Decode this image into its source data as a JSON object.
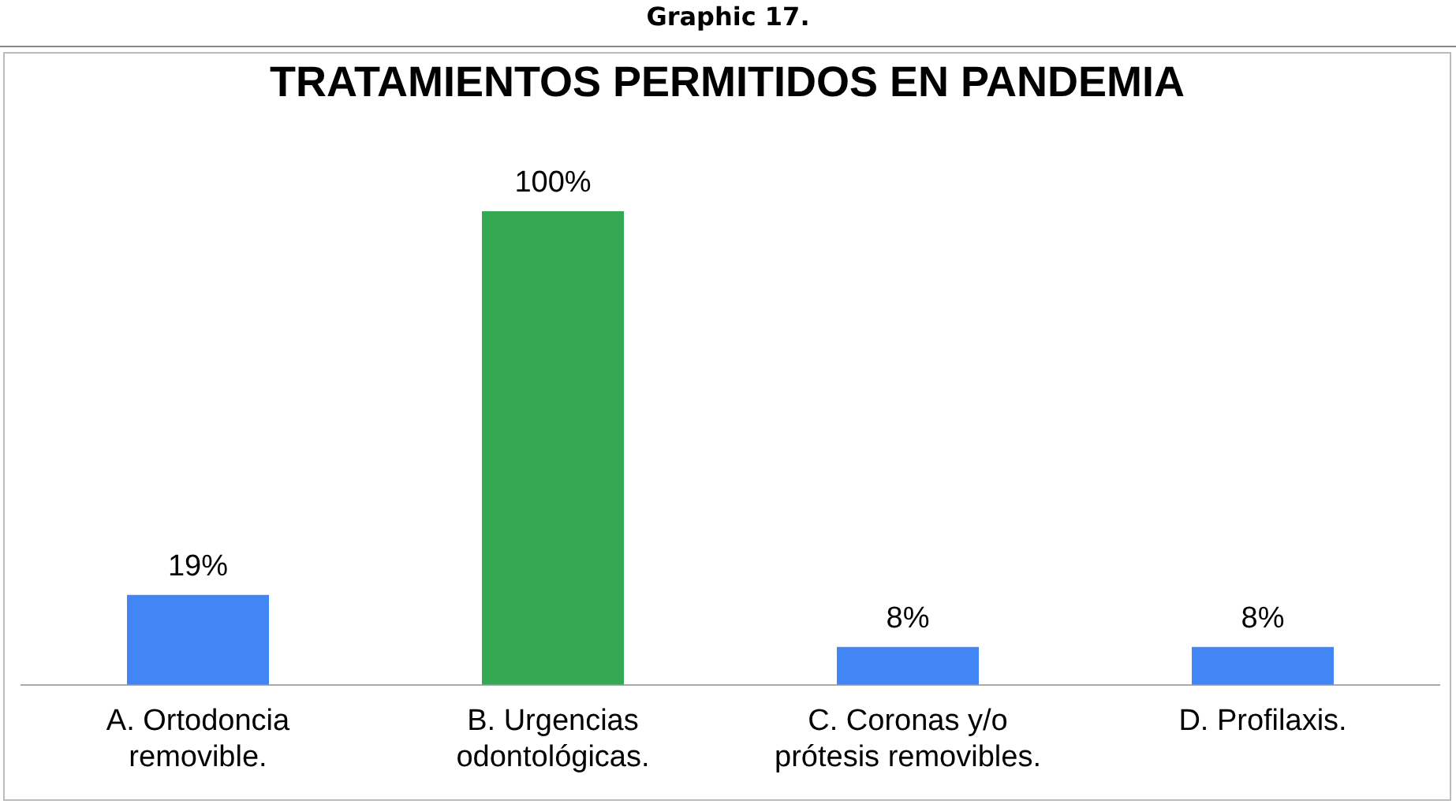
{
  "chart_data": {
    "type": "bar",
    "title": "TRATAMIENTOS  PERMITIDOS EN PANDEMIA",
    "annotations": [
      "Graphic 17."
    ],
    "categories": [
      "A. Ortodoncia removible.",
      "B. Urgencias odontológicas.",
      "C. Coronas y/o prótesis removibles.",
      "D. Profilaxis."
    ],
    "values": [
      19,
      100,
      8,
      8
    ],
    "colors": [
      "#4285f4",
      "#34a853",
      "#4285f4",
      "#4285f4"
    ],
    "value_labels": [
      "19%",
      "100%",
      "8%",
      "8%"
    ],
    "grid": false,
    "legend": false
  }
}
